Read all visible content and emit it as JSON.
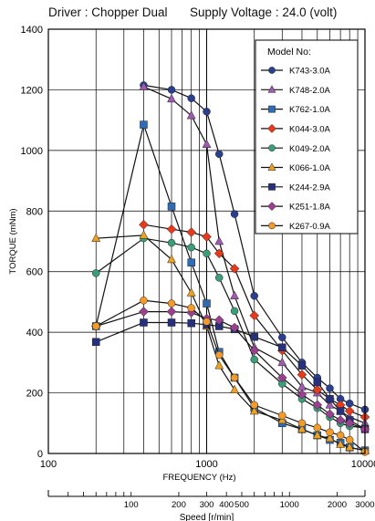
{
  "header": {
    "driver": "Driver : Chopper Dual",
    "supply": "Supply Voltage : 24.0 (volt)"
  },
  "chart_data": {
    "type": "line",
    "title": "",
    "ylabel": "TORQUE (mNm)",
    "xlabel": "FREQUENCY (Hz)",
    "x2label": "Speed [r/min]",
    "x_scale": "log",
    "xlim": [
      100,
      10000
    ],
    "ylim": [
      0,
      1400
    ],
    "y_ticks": [
      0,
      200,
      400,
      600,
      800,
      1000,
      1200,
      1400
    ],
    "x_tick_labels": [
      {
        "value": 100,
        "label": "100"
      },
      {
        "value": 1000,
        "label": "1000"
      },
      {
        "value": 10000,
        "label": "10000"
      }
    ],
    "speed_ticks": [
      {
        "value": 100,
        "label": "100"
      },
      {
        "value": 200,
        "label": "200"
      },
      {
        "value": 300,
        "label": "300"
      },
      {
        "value": 400,
        "label": "400"
      },
      {
        "value": 500,
        "label": "500"
      },
      {
        "value": 1000,
        "label": "1000"
      },
      {
        "value": 2000,
        "label": "2000"
      },
      {
        "value": 3000,
        "label": "3000"
      }
    ],
    "speed_per_hz": 0.3,
    "grid": true,
    "legend_title": "Model No:",
    "legend_position": "top-right",
    "series": [
      {
        "name": "K743-3.0A",
        "marker": "circle",
        "color": "#2a3f8f",
        "x": [
          400,
          600,
          800,
          1000,
          1200,
          1500,
          2000,
          3000,
          4000,
          5000,
          6000,
          7000,
          8000,
          10000
        ],
        "y": [
          1215,
          1200,
          1172,
          1128,
          988,
          790,
          520,
          383,
          300,
          250,
          215,
          180,
          165,
          145
        ]
      },
      {
        "name": "K748-2.0A",
        "marker": "triangle",
        "color": "#a05ab0",
        "x": [
          400,
          600,
          800,
          1000,
          1200,
          1500,
          2000,
          3000,
          4000,
          5000,
          6000,
          7000,
          8000,
          10000
        ],
        "y": [
          1210,
          1170,
          1115,
          1020,
          700,
          520,
          350,
          300,
          220,
          200,
          160,
          140,
          120,
          100
        ]
      },
      {
        "name": "K762-1.0A",
        "marker": "square",
        "color": "#2e6db4",
        "x": [
          200,
          400,
          600,
          800,
          1000,
          1200,
          1500,
          2000,
          3000,
          4000,
          5000,
          6000,
          7000,
          8000,
          10000
        ],
        "y": [
          420,
          1085,
          815,
          630,
          495,
          335,
          250,
          150,
          100,
          80,
          60,
          45,
          35,
          20,
          10
        ]
      },
      {
        "name": "K044-3.0A",
        "marker": "diamond",
        "color": "#e8391b",
        "x": [
          400,
          600,
          800,
          1000,
          1200,
          1500,
          2000,
          3000,
          4000,
          5000,
          6000,
          7000,
          8000,
          10000
        ],
        "y": [
          755,
          740,
          730,
          715,
          660,
          610,
          455,
          340,
          260,
          210,
          180,
          160,
          140,
          120
        ]
      },
      {
        "name": "K049-2.0A",
        "marker": "circle",
        "color": "#3a9e78",
        "x": [
          200,
          400,
          600,
          800,
          1000,
          1200,
          1500,
          2000,
          3000,
          4000,
          5000,
          6000,
          7000,
          8000,
          10000
        ],
        "y": [
          595,
          710,
          695,
          680,
          660,
          580,
          470,
          310,
          230,
          180,
          150,
          120,
          100,
          90,
          85
        ]
      },
      {
        "name": "K066-1.0A",
        "marker": "triangle",
        "color": "#f0a020",
        "x": [
          200,
          400,
          600,
          800,
          1000,
          1200,
          1500,
          2000,
          3000,
          4000,
          5000,
          6000,
          7000,
          8000,
          10000
        ],
        "y": [
          710,
          720,
          640,
          530,
          420,
          290,
          210,
          140,
          110,
          80,
          60,
          50,
          30,
          20,
          10
        ]
      },
      {
        "name": "K244-2.9A",
        "marker": "square",
        "color": "#27307a",
        "x": [
          200,
          400,
          600,
          800,
          1000,
          1200,
          1500,
          2000,
          3000,
          4000,
          5000,
          6000,
          7000,
          8000,
          10000
        ],
        "y": [
          368,
          432,
          432,
          430,
          425,
          420,
          410,
          385,
          350,
          290,
          235,
          180,
          140,
          110,
          80
        ]
      },
      {
        "name": "K251-1.8A",
        "marker": "diamond",
        "color": "#9b3f8f",
        "x": [
          200,
          400,
          600,
          800,
          1000,
          1200,
          1500,
          2000,
          3000,
          4000,
          5000,
          6000,
          7000,
          8000,
          10000
        ],
        "y": [
          420,
          468,
          468,
          465,
          445,
          440,
          415,
          340,
          250,
          195,
          160,
          130,
          110,
          100,
          80
        ]
      },
      {
        "name": "K267-0.9A",
        "marker": "circle",
        "color": "#f29b2a",
        "x": [
          200,
          400,
          600,
          800,
          1000,
          1200,
          1500,
          2000,
          3000,
          4000,
          5000,
          6000,
          7000,
          8000,
          10000
        ],
        "y": [
          420,
          505,
          495,
          480,
          435,
          325,
          250,
          160,
          125,
          100,
          85,
          70,
          60,
          45,
          5
        ]
      }
    ]
  }
}
